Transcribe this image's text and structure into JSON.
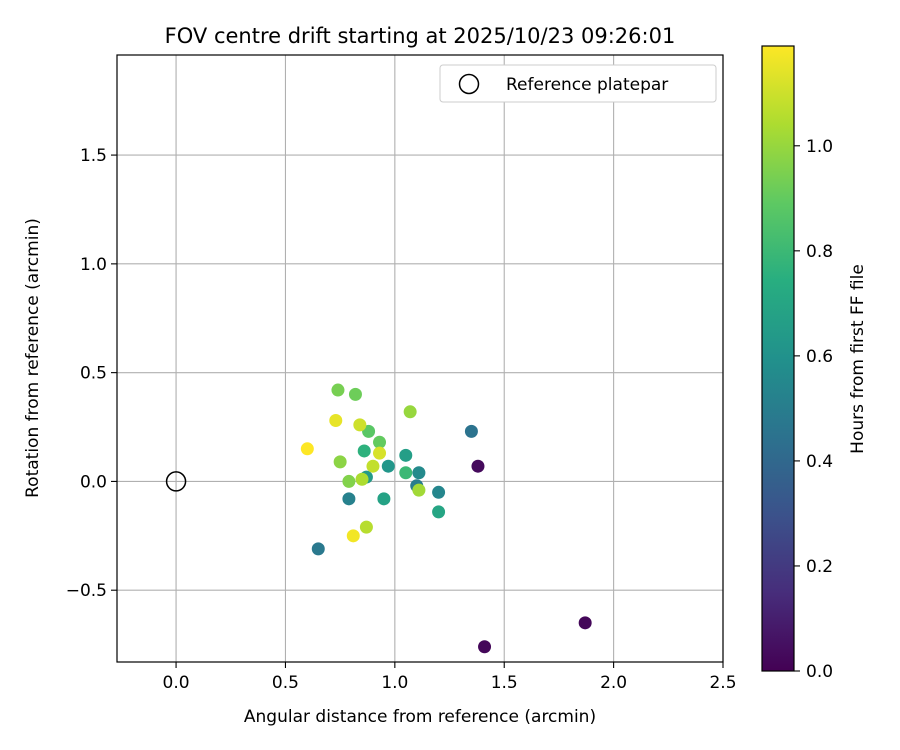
{
  "chart_data": {
    "type": "scatter",
    "title": "FOV centre drift starting at 2025/10/23 09:26:01",
    "xlabel": "Angular distance from reference (arcmin)",
    "ylabel": "Rotation from reference (arcmin)",
    "xlim": [
      -0.27,
      2.5
    ],
    "ylim": [
      -0.83,
      1.96
    ],
    "xticks": [
      0.0,
      0.5,
      1.0,
      1.5,
      2.0,
      2.5
    ],
    "xtick_labels": [
      "0.0",
      "0.5",
      "1.0",
      "1.5",
      "2.0",
      "2.5"
    ],
    "yticks": [
      -0.5,
      0.0,
      0.5,
      1.0,
      1.5
    ],
    "ytick_labels": [
      "−0.5",
      "0.0",
      "0.5",
      "1.0",
      "1.5"
    ],
    "grid": true,
    "legend": {
      "position": "top-right",
      "entries": [
        {
          "label": "Reference platepar",
          "marker": "open-circle"
        }
      ]
    },
    "reference_point": {
      "x": 0.0,
      "y": 0.0
    },
    "colorbar": {
      "label": "Hours from first FF file",
      "range": [
        0.0,
        1.19
      ],
      "ticks": [
        0.0,
        0.2,
        0.4,
        0.6,
        0.8,
        1.0
      ],
      "tick_labels": [
        "0.0",
        "0.2",
        "0.4",
        "0.6",
        "0.8",
        "1.0"
      ],
      "colormap": "viridis"
    },
    "points": [
      {
        "x": 1.87,
        "y": -0.65,
        "hours": 0.02
      },
      {
        "x": 1.41,
        "y": -0.76,
        "hours": 0.02
      },
      {
        "x": 1.38,
        "y": 0.07,
        "hours": 0.03
      },
      {
        "x": 1.35,
        "y": 0.23,
        "hours": 0.45
      },
      {
        "x": 0.65,
        "y": -0.31,
        "hours": 0.48
      },
      {
        "x": 1.1,
        "y": -0.02,
        "hours": 0.5
      },
      {
        "x": 0.79,
        "y": -0.08,
        "hours": 0.52
      },
      {
        "x": 1.2,
        "y": -0.05,
        "hours": 0.54
      },
      {
        "x": 1.11,
        "y": 0.04,
        "hours": 0.56
      },
      {
        "x": 0.97,
        "y": 0.07,
        "hours": 0.62
      },
      {
        "x": 0.87,
        "y": 0.02,
        "hours": 0.64
      },
      {
        "x": 1.05,
        "y": 0.12,
        "hours": 0.66
      },
      {
        "x": 0.95,
        "y": -0.08,
        "hours": 0.68
      },
      {
        "x": 1.2,
        "y": -0.14,
        "hours": 0.7
      },
      {
        "x": 0.86,
        "y": 0.14,
        "hours": 0.76
      },
      {
        "x": 1.05,
        "y": 0.04,
        "hours": 0.8
      },
      {
        "x": 0.88,
        "y": 0.23,
        "hours": 0.88
      },
      {
        "x": 0.93,
        "y": 0.18,
        "hours": 0.9
      },
      {
        "x": 0.82,
        "y": 0.4,
        "hours": 0.92
      },
      {
        "x": 0.74,
        "y": 0.42,
        "hours": 0.94
      },
      {
        "x": 0.79,
        "y": 0.0,
        "hours": 0.96
      },
      {
        "x": 0.75,
        "y": 0.09,
        "hours": 0.98
      },
      {
        "x": 1.07,
        "y": 0.32,
        "hours": 1.0
      },
      {
        "x": 1.11,
        "y": -0.04,
        "hours": 1.02
      },
      {
        "x": 0.85,
        "y": 0.01,
        "hours": 1.04
      },
      {
        "x": 0.87,
        "y": -0.21,
        "hours": 1.06
      },
      {
        "x": 0.9,
        "y": 0.07,
        "hours": 1.08
      },
      {
        "x": 0.84,
        "y": 0.26,
        "hours": 1.1
      },
      {
        "x": 0.93,
        "y": 0.13,
        "hours": 1.12
      },
      {
        "x": 0.73,
        "y": 0.28,
        "hours": 1.15
      },
      {
        "x": 0.81,
        "y": -0.25,
        "hours": 1.17
      },
      {
        "x": 0.6,
        "y": 0.15,
        "hours": 1.19
      }
    ]
  }
}
